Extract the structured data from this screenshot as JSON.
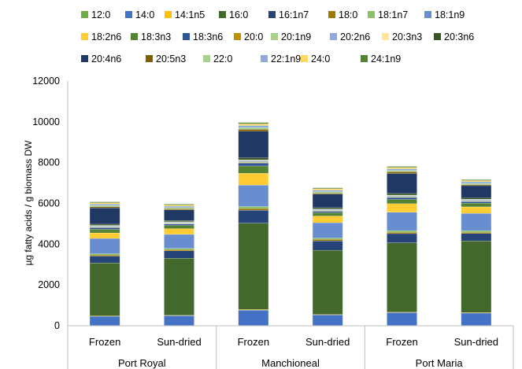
{
  "chart_data": {
    "type": "bar",
    "stacked": true,
    "title": "",
    "xlabel": "",
    "ylabel": "µg fatty acids / g biomass DW",
    "ylim": [
      0,
      12000
    ],
    "yticks": [
      "0",
      "2000",
      "4000",
      "6000",
      "8000",
      "10000",
      "12000"
    ],
    "grid": false,
    "legend_position": "top",
    "categories": [
      "Frozen",
      "Sun-dried",
      "Frozen",
      "Sun-dried",
      "Frozen",
      "Sun-dried"
    ],
    "groups": [
      {
        "label": "Port Royal",
        "categories": [
          "Frozen",
          "Sun-dried"
        ]
      },
      {
        "label": "Manchioneal",
        "categories": [
          "Frozen",
          "Sun-dried"
        ]
      },
      {
        "label": "Port Maria",
        "categories": [
          "Frozen",
          "Sun-dried"
        ]
      }
    ],
    "series": [
      {
        "name": "12:0",
        "color": "#70AD47",
        "values": [
          15,
          15,
          20,
          15,
          20,
          15
        ]
      },
      {
        "name": "14:0",
        "color": "#4472C4",
        "values": [
          450,
          480,
          750,
          520,
          630,
          610
        ]
      },
      {
        "name": "14:1n5",
        "color": "#FFC000",
        "values": [
          20,
          20,
          30,
          20,
          20,
          20
        ]
      },
      {
        "name": "16:0",
        "color": "#43682B",
        "values": [
          2600,
          2800,
          4230,
          3150,
          3400,
          3520
        ]
      },
      {
        "name": "16:1n7",
        "color": "#264478",
        "values": [
          330,
          360,
          640,
          460,
          450,
          360
        ]
      },
      {
        "name": "18:0",
        "color": "#9E7A00",
        "values": [
          60,
          60,
          80,
          70,
          70,
          60
        ]
      },
      {
        "name": "18:1n7",
        "color": "#8CC168",
        "values": [
          60,
          60,
          100,
          70,
          80,
          80
        ]
      },
      {
        "name": "18:1n9",
        "color": "#698ED0",
        "values": [
          750,
          690,
          1050,
          750,
          900,
          850
        ]
      },
      {
        "name": "18:2n6",
        "color": "#FFCD33",
        "values": [
          270,
          280,
          580,
          330,
          420,
          320
        ]
      },
      {
        "name": "18:3n3",
        "color": "#548235",
        "values": [
          180,
          160,
          360,
          160,
          210,
          180
        ]
      },
      {
        "name": "18:3n6",
        "color": "#2F5597",
        "values": [
          80,
          70,
          140,
          70,
          90,
          80
        ]
      },
      {
        "name": "20:0",
        "color": "#BF9000",
        "values": [
          20,
          20,
          30,
          20,
          20,
          20
        ]
      },
      {
        "name": "20:1n9",
        "color": "#A9D18E",
        "values": [
          30,
          30,
          40,
          30,
          30,
          30
        ]
      },
      {
        "name": "20:2n6",
        "color": "#8FAADC",
        "values": [
          40,
          40,
          60,
          40,
          50,
          40
        ]
      },
      {
        "name": "20:3n3",
        "color": "#FFE699",
        "values": [
          20,
          20,
          30,
          20,
          20,
          20
        ]
      },
      {
        "name": "20:3n6",
        "color": "#375623",
        "values": [
          60,
          60,
          100,
          70,
          80,
          70
        ]
      },
      {
        "name": "20:4n6",
        "color": "#203864",
        "values": [
          800,
          520,
          1300,
          660,
          980,
          600
        ]
      },
      {
        "name": "20:5n3",
        "color": "#7F6000",
        "values": [
          60,
          50,
          100,
          50,
          80,
          50
        ]
      },
      {
        "name": "22:0",
        "color": "#A9D18E",
        "values": [
          60,
          60,
          80,
          70,
          70,
          60
        ]
      },
      {
        "name": "22:1n9",
        "color": "#8FAADC",
        "values": [
          70,
          70,
          100,
          80,
          80,
          80
        ]
      },
      {
        "name": "24:0",
        "color": "#FFD966",
        "values": [
          60,
          60,
          90,
          70,
          70,
          60
        ]
      },
      {
        "name": "24:1n9",
        "color": "#548235",
        "values": [
          35,
          35,
          50,
          35,
          40,
          35
        ]
      }
    ]
  }
}
